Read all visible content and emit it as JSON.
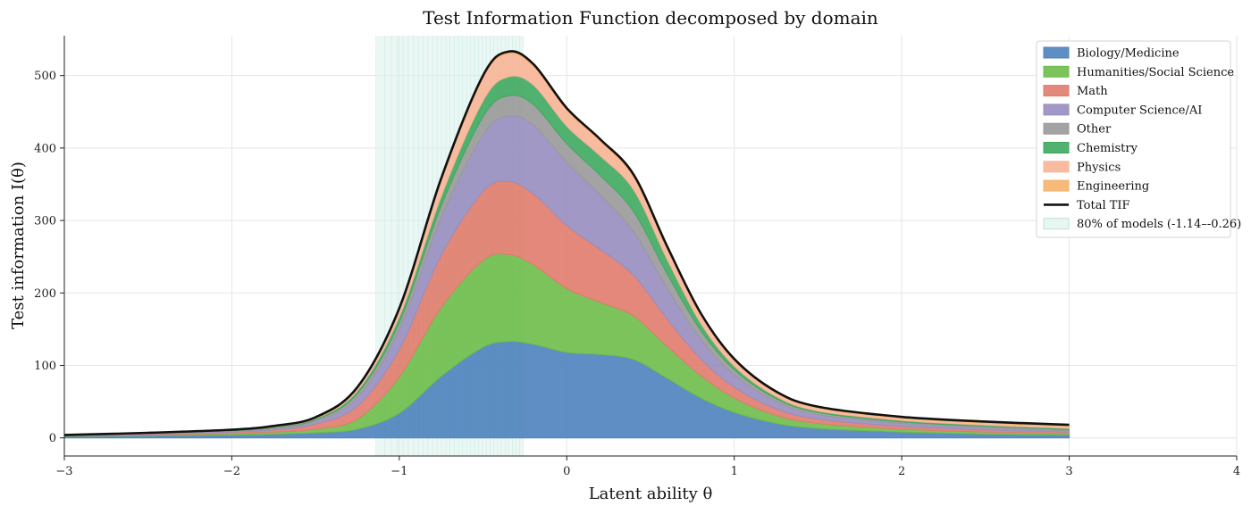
{
  "chart_data": {
    "type": "area",
    "title": "Test Information Function decomposed by domain",
    "xlabel": "Latent ability θ",
    "ylabel": "Test information I(θ)",
    "xlim": [
      -3,
      4
    ],
    "ylim": [
      -25,
      555
    ],
    "xticks": [
      -3,
      -2,
      -1,
      0,
      1,
      2,
      3,
      4
    ],
    "xtick_labels": [
      "−3",
      "−2",
      "−1",
      "0",
      "1",
      "2",
      "3",
      "4"
    ],
    "yticks": [
      0,
      100,
      200,
      300,
      400,
      500
    ],
    "grid": true,
    "legend_position": "top-right",
    "x": [
      -3,
      -2.5,
      -2,
      -1.75,
      -1.5,
      -1.25,
      -1,
      -0.75,
      -0.5,
      -0.35,
      -0.2,
      0,
      0.2,
      0.4,
      0.6,
      0.8,
      1,
      1.25,
      1.5,
      2,
      2.5,
      3
    ],
    "stack_order_bottom_to_top": [
      "Biology/Medicine",
      "Humanities/Social Science",
      "Math",
      "Computer Science/AI",
      "Other",
      "Chemistry",
      "Physics",
      "Engineering"
    ],
    "series": [
      {
        "name": "Biology/Medicine",
        "color": "#4c82bc",
        "values": [
          2,
          3,
          4,
          5,
          7,
          12,
          34,
          85,
          125,
          133,
          129,
          118,
          115,
          108,
          82,
          55,
          35,
          20,
          13,
          8,
          5,
          4
        ]
      },
      {
        "name": "Humanities/Social Science",
        "color": "#6ebd4a",
        "values": [
          1,
          1,
          2,
          3,
          5,
          14,
          50,
          95,
          120,
          120,
          110,
          88,
          72,
          60,
          44,
          31,
          20,
          11,
          7,
          4,
          3,
          2
        ]
      },
      {
        "name": "Math",
        "color": "#e07b6b",
        "values": [
          0.5,
          1,
          2,
          3,
          7,
          18,
          38,
          72,
          95,
          101,
          98,
          87,
          73,
          56,
          38,
          23,
          15,
          9,
          6,
          4,
          3,
          2
        ]
      },
      {
        "name": "Computer Science/AI",
        "color": "#988dbf",
        "values": [
          0.5,
          1,
          1.5,
          2,
          4,
          12,
          28,
          52,
          78,
          90,
          95,
          87,
          75,
          60,
          42,
          27,
          17,
          10,
          6,
          4,
          3,
          2
        ]
      },
      {
        "name": "Other",
        "color": "#999999",
        "values": [
          0,
          0.3,
          0.5,
          1,
          2,
          5,
          9,
          16,
          25,
          28,
          28,
          26,
          27,
          28,
          20,
          12,
          7,
          4,
          3,
          2,
          2,
          1.5
        ]
      },
      {
        "name": "Chemistry",
        "color": "#3ea85e",
        "values": [
          0,
          0.3,
          0.5,
          1,
          1.5,
          4,
          8,
          13,
          22,
          26,
          27,
          24,
          27,
          30,
          20,
          10,
          5,
          3,
          2,
          2,
          1.5,
          1.5
        ]
      },
      {
        "name": "Physics",
        "color": "#f8b496",
        "values": [
          0,
          0.3,
          0.5,
          1,
          1.5,
          4,
          10,
          22,
          32,
          32,
          26,
          22,
          20,
          18,
          15,
          12,
          8,
          5,
          4,
          3,
          3,
          3
        ]
      },
      {
        "name": "Engineering",
        "color": "#f6b26b",
        "values": [
          0,
          0.1,
          0.3,
          0.5,
          0.5,
          1,
          2,
          3,
          3,
          3,
          3,
          3,
          3,
          3,
          3,
          2,
          2,
          2,
          2,
          2,
          2,
          2
        ]
      }
    ],
    "total": {
      "name": "Total TIF",
      "color": "#111111"
    },
    "band": {
      "name": "80% of models (-1.14–-0.26)",
      "x_range": [
        -1.14,
        -0.26
      ],
      "color": "#d8f0ea"
    }
  }
}
